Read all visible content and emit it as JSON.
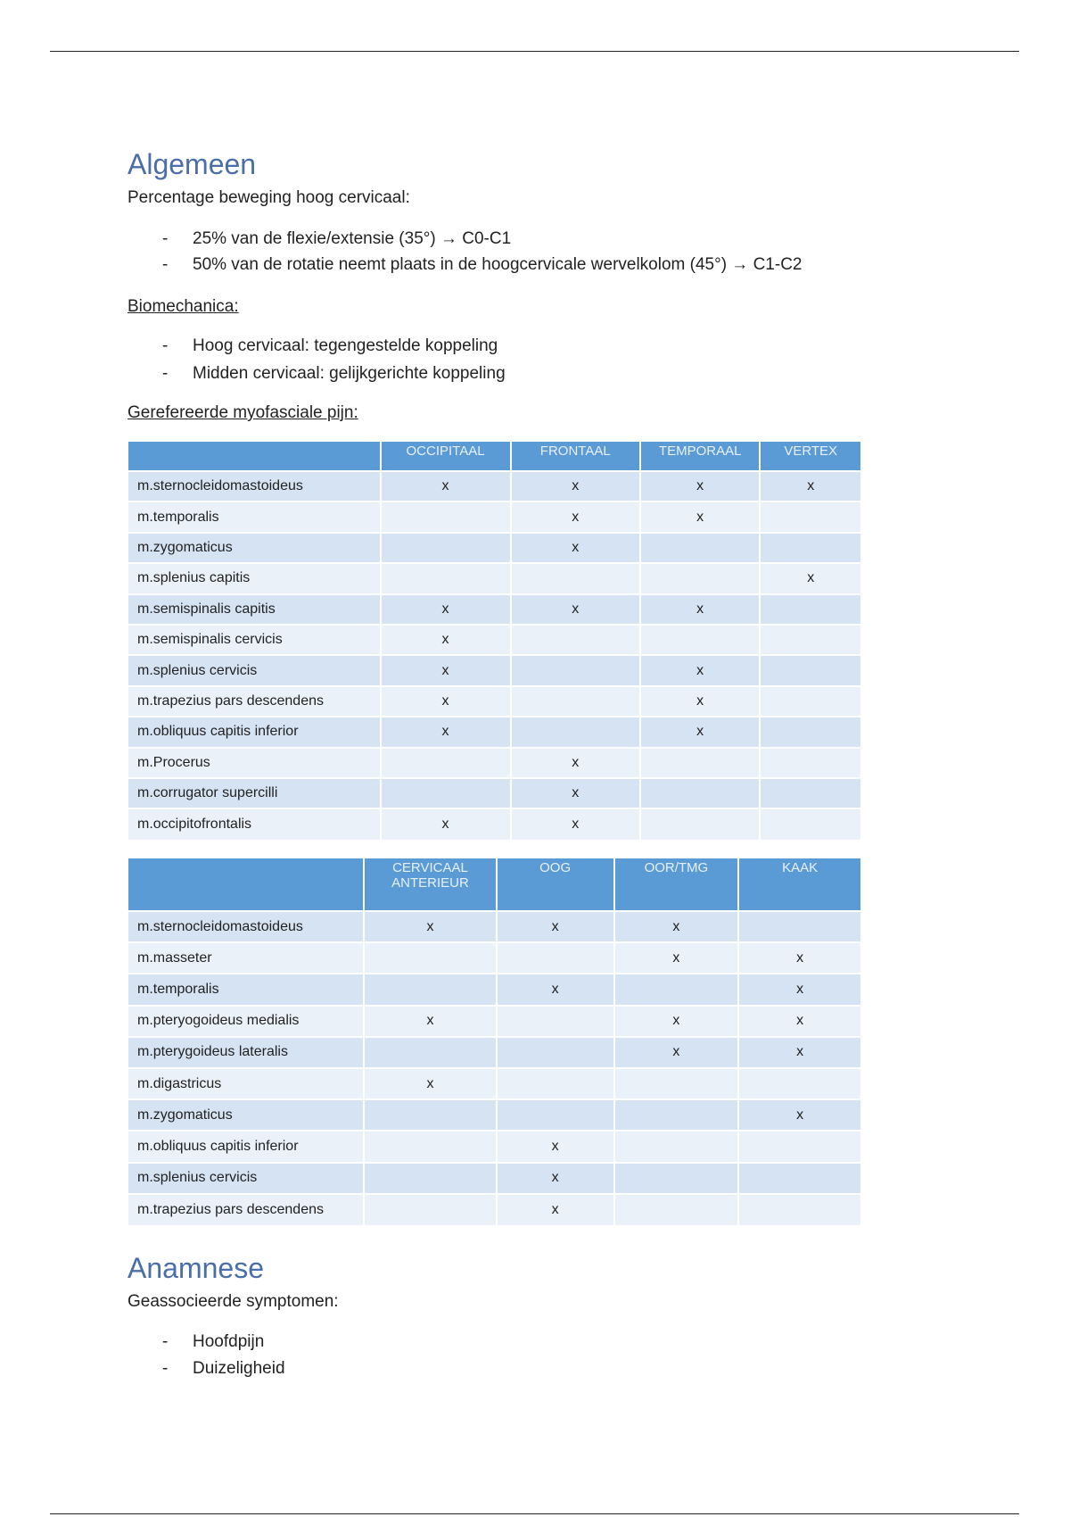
{
  "sections": [
    {
      "heading": "Algemeen",
      "intro": "Percentage beweging hoog cervicaal:",
      "bullets": [
        "25% van de flexie/extensie (35°) → C0-C1",
        "50% van de rotatie neemt plaats in de hoogcervicale wervelkolom (45°) → C1-C2"
      ]
    },
    {
      "subheading": "Biomechanica:",
      "bullets": [
        "Hoog cervicaal: tegengestelde koppeling",
        "Midden cervicaal: gelijkgerichte koppeling"
      ]
    },
    {
      "subheading": "Gerefereerde myofasciale pijn:"
    },
    {
      "heading": "Anamnese",
      "intro": "Geassocieerde symptomen:",
      "bullets": [
        "Hoofdpijn",
        "Duizeligheid"
      ]
    }
  ],
  "tables": [
    {
      "columns": [
        "OCCIPITAAL",
        "FRONTAAL",
        "TEMPORAAL",
        "VERTEX"
      ],
      "rows": [
        {
          "label": "m.sternocleidomastoideus",
          "cells": [
            "x",
            "x",
            "x",
            "x"
          ]
        },
        {
          "label": "m.temporalis",
          "cells": [
            null,
            "x",
            "x",
            null
          ]
        },
        {
          "label": "m.zygomaticus",
          "cells": [
            null,
            "x",
            null,
            null
          ]
        },
        {
          "label": "m.splenius capitis",
          "cells": [
            null,
            null,
            null,
            "x"
          ]
        },
        {
          "label": "m.semispinalis capitis",
          "cells": [
            "x",
            "x",
            "x",
            null
          ]
        },
        {
          "label": "m.semispinalis cervicis",
          "cells": [
            "x",
            null,
            null,
            null
          ]
        },
        {
          "label": "m.splenius cervicis",
          "cells": [
            "x",
            null,
            "x",
            null
          ]
        },
        {
          "label": "m.trapezius pars descendens",
          "cells": [
            "x",
            null,
            "x",
            null
          ]
        },
        {
          "label": "m.obliquus capitis inferior",
          "cells": [
            "x",
            null,
            "x",
            null
          ]
        },
        {
          "label": "m.Procerus",
          "cells": [
            null,
            "x",
            null,
            null
          ]
        },
        {
          "label": "m.corrugator supercilli",
          "cells": [
            null,
            "x",
            null,
            null
          ]
        },
        {
          "label": "m.occipitofrontalis",
          "cells": [
            "x",
            "x",
            null,
            null
          ]
        }
      ]
    },
    {
      "columns": [
        "CERVICAAL ANTERIEUR",
        "OOG",
        "OOR/TMG",
        "KAAK"
      ],
      "rows": [
        {
          "label": "m.sternocleidomastoideus",
          "cells": [
            "x",
            "x",
            "x",
            null
          ]
        },
        {
          "label": "m.masseter",
          "cells": [
            null,
            null,
            "x",
            "x"
          ]
        },
        {
          "label": "m.temporalis",
          "cells": [
            null,
            "x",
            null,
            "x"
          ]
        },
        {
          "label": "m.pteryogoideus medialis",
          "cells": [
            "x",
            null,
            "x",
            "x"
          ]
        },
        {
          "label": "m.pterygoideus lateralis",
          "cells": [
            null,
            null,
            "x",
            "x"
          ]
        },
        {
          "label": "m.digastricus",
          "cells": [
            "x",
            null,
            null,
            null
          ]
        },
        {
          "label": "m.zygomaticus",
          "cells": [
            null,
            null,
            null,
            "x"
          ]
        },
        {
          "label": "m.obliquus capitis inferior",
          "cells": [
            null,
            "x",
            null,
            null
          ]
        },
        {
          "label": "m.splenius cervicis",
          "cells": [
            null,
            "x",
            null,
            null
          ]
        },
        {
          "label": "m.trapezius pars descendens",
          "cells": [
            null,
            "x",
            null,
            null
          ]
        }
      ]
    }
  ]
}
